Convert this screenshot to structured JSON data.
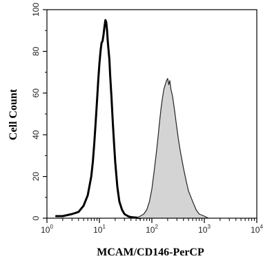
{
  "chart_data": {
    "type": "area",
    "xlabel": "MCAM/CD146-PerCP",
    "ylabel": "Cell Count",
    "x_scale": "log",
    "xlim": [
      1,
      10000
    ],
    "ylim": [
      0,
      100
    ],
    "x_ticks": [
      {
        "value": 1,
        "base": "10",
        "exp": "0"
      },
      {
        "value": 10,
        "base": "10",
        "exp": "1"
      },
      {
        "value": 100,
        "base": "10",
        "exp": "2"
      },
      {
        "value": 1000,
        "base": "10",
        "exp": "3"
      },
      {
        "value": 10000,
        "base": "10",
        "exp": "4"
      }
    ],
    "y_ticks": [
      "0",
      "20",
      "40",
      "60",
      "80",
      "100"
    ],
    "grid": false,
    "colors": {
      "isotype_line": "#000000",
      "stained_fill": "#d4d4d4",
      "stained_line": "#222222",
      "axis": "#000000"
    },
    "series": [
      {
        "style": "outline-thick",
        "x": [
          1.5,
          2,
          3,
          4,
          5,
          6,
          7,
          7.5,
          8,
          8.5,
          9,
          9.5,
          10,
          10.5,
          11,
          11.5,
          12,
          12.5,
          13,
          13.5,
          14,
          14.5,
          15,
          15.5,
          16,
          17,
          18,
          19,
          20,
          22,
          24,
          27,
          30,
          35,
          40,
          50,
          60
        ],
        "values": [
          1,
          1,
          2,
          3,
          6,
          11,
          20,
          27,
          36,
          46,
          56,
          66,
          74,
          80,
          84,
          85,
          88,
          92,
          95,
          94,
          90,
          84,
          80,
          76,
          69,
          58,
          46,
          36,
          27,
          15,
          8,
          4,
          2,
          1,
          0.5,
          0.3,
          0
        ]
      },
      {
        "style": "filled",
        "x": [
          50,
          60,
          70,
          80,
          90,
          100,
          110,
          120,
          130,
          140,
          150,
          160,
          170,
          180,
          190,
          200,
          210,
          220,
          230,
          240,
          250,
          270,
          290,
          320,
          350,
          400,
          450,
          500,
          600,
          700,
          800,
          1000,
          1200
        ],
        "values": [
          0,
          1,
          2,
          4,
          8,
          14,
          22,
          30,
          38,
          46,
          53,
          58,
          62,
          64,
          66,
          67,
          64,
          66,
          62,
          60,
          58,
          52,
          46,
          38,
          32,
          24,
          18,
          13,
          8,
          4,
          2,
          1,
          0
        ]
      }
    ]
  }
}
